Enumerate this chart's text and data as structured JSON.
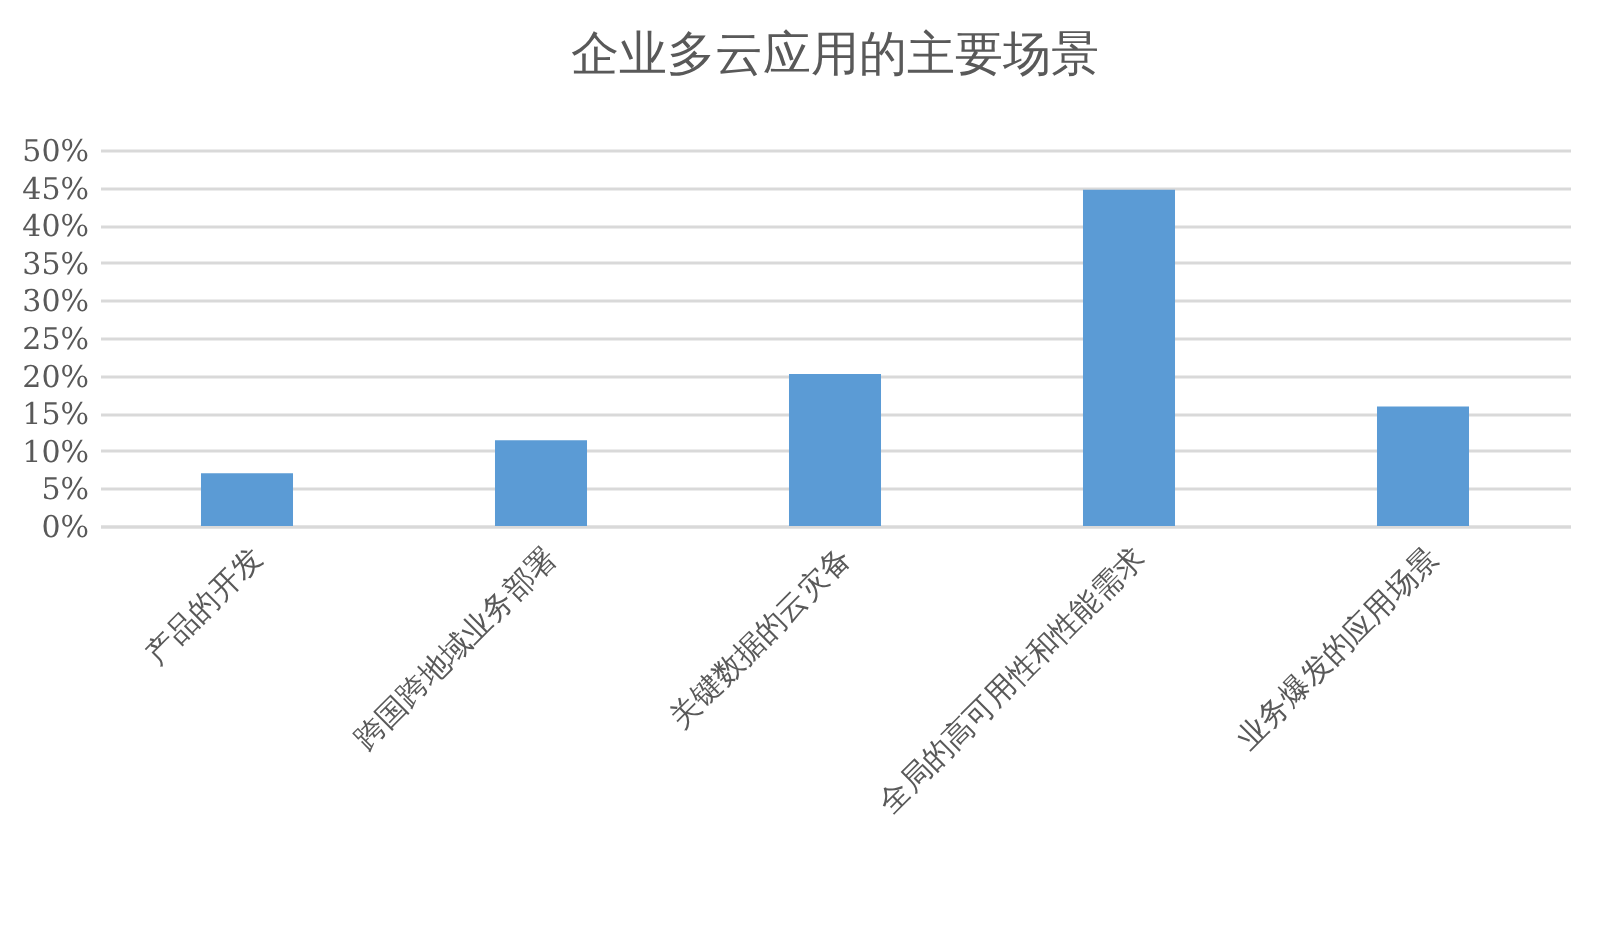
{
  "chart_data": {
    "type": "bar",
    "title": "企业多云应用的主要场景",
    "categories": [
      "产品的开发",
      "跨国跨地域业务部署",
      "关键数据的云灾备",
      "全局的高可用性和性能需求",
      "业务爆发的应用场景"
    ],
    "values": [
      7.0,
      11.4,
      20.2,
      44.7,
      15.9
    ],
    "color": "#5b9bd5",
    "ylim": [
      0,
      50
    ],
    "yticks": [
      {
        "value": 0,
        "label": "0%"
      },
      {
        "value": 5,
        "label": "5%"
      },
      {
        "value": 10,
        "label": "10%"
      },
      {
        "value": 15,
        "label": "15%"
      },
      {
        "value": 20,
        "label": "20%"
      },
      {
        "value": 25,
        "label": "25%"
      },
      {
        "value": 30,
        "label": "30%"
      },
      {
        "value": 35,
        "label": "35%"
      },
      {
        "value": 40,
        "label": "40%"
      },
      {
        "value": 45,
        "label": "45%"
      },
      {
        "value": 50,
        "label": "50%"
      }
    ],
    "grid": "y"
  }
}
